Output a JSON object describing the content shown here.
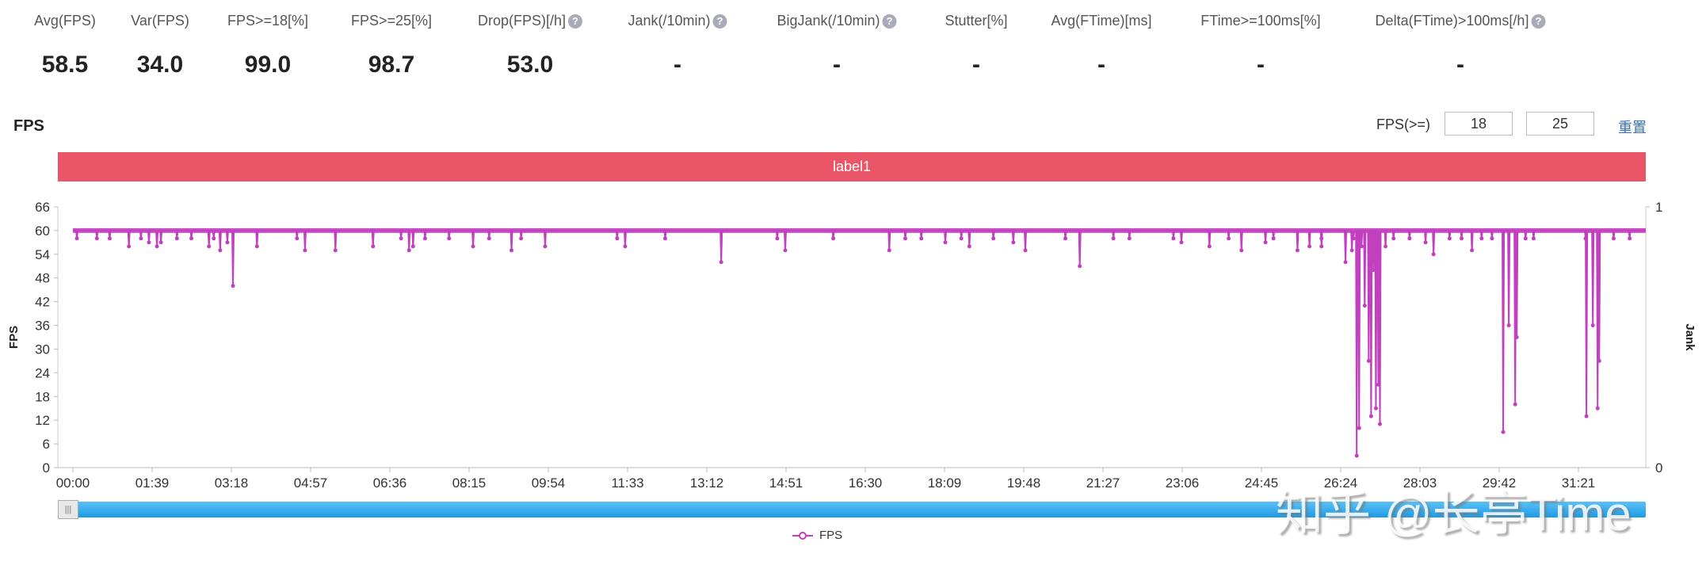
{
  "metrics": [
    {
      "label": "Avg(FPS)",
      "value": "58.5",
      "help": false
    },
    {
      "label": "Var(FPS)",
      "value": "34.0",
      "help": false
    },
    {
      "label": "FPS>=18[%]",
      "value": "99.0",
      "help": false
    },
    {
      "label": "FPS>=25[%]",
      "value": "98.7",
      "help": false
    },
    {
      "label": "Drop(FPS)[/h]",
      "value": "53.0",
      "help": true
    },
    {
      "label": "Jank(/10min)",
      "value": "-",
      "help": true
    },
    {
      "label": "BigJank(/10min)",
      "value": "-",
      "help": true
    },
    {
      "label": "Stutter[%]",
      "value": "-",
      "help": false
    },
    {
      "label": "Avg(FTime)[ms]",
      "value": "-",
      "help": false
    },
    {
      "label": "FTime>=100ms[%]",
      "value": "-",
      "help": false
    },
    {
      "label": "Delta(FTime)>100ms[/h]",
      "value": "-",
      "help": true
    }
  ],
  "help_glyph": "?",
  "section_title": "FPS",
  "controls": {
    "label": "FPS(>=)",
    "threshold1": "18",
    "threshold2": "25",
    "reset": "重置"
  },
  "label_bar": "label1",
  "colors": {
    "series": "#c23fbf",
    "label_bar": "#ea5567",
    "slider": "#1d9be6"
  },
  "watermark": "知乎 @长亭Time",
  "chart_data": {
    "type": "line",
    "xlabel": "",
    "ylabel": "FPS",
    "y2label": "Jank",
    "ylim": [
      0,
      66
    ],
    "yticks": [
      0,
      6,
      12,
      18,
      24,
      30,
      36,
      42,
      48,
      54,
      60,
      66
    ],
    "y2ticks": [
      0,
      1
    ],
    "xticks": [
      "00:00",
      "01:39",
      "03:18",
      "04:57",
      "06:36",
      "08:15",
      "09:54",
      "11:33",
      "13:12",
      "14:51",
      "16:30",
      "18:09",
      "19:48",
      "21:27",
      "23:06",
      "24:45",
      "26:24",
      "28:03",
      "29:42",
      "31:21"
    ],
    "xtick_step_s": 99,
    "duration_s": 1965,
    "legend": [
      "FPS"
    ],
    "legend_position": "bottom-center",
    "series": [
      {
        "name": "FPS",
        "baseline": 60,
        "dips": [
          [
            5,
            58
          ],
          [
            30,
            58
          ],
          [
            46,
            58
          ],
          [
            70,
            56
          ],
          [
            85,
            58
          ],
          [
            95,
            57
          ],
          [
            105,
            56
          ],
          [
            110,
            57
          ],
          [
            130,
            58
          ],
          [
            148,
            58
          ],
          [
            170,
            56
          ],
          [
            176,
            58
          ],
          [
            184,
            55
          ],
          [
            193,
            57
          ],
          [
            200,
            46
          ],
          [
            230,
            56
          ],
          [
            280,
            58
          ],
          [
            290,
            55
          ],
          [
            328,
            55
          ],
          [
            375,
            56
          ],
          [
            410,
            58
          ],
          [
            420,
            55
          ],
          [
            425,
            56
          ],
          [
            440,
            58
          ],
          [
            470,
            58
          ],
          [
            500,
            56
          ],
          [
            520,
            58
          ],
          [
            548,
            55
          ],
          [
            560,
            58
          ],
          [
            590,
            56
          ],
          [
            680,
            58
          ],
          [
            690,
            56
          ],
          [
            740,
            58
          ],
          [
            810,
            52
          ],
          [
            880,
            58
          ],
          [
            890,
            55
          ],
          [
            950,
            58
          ],
          [
            1020,
            55
          ],
          [
            1040,
            58
          ],
          [
            1060,
            58
          ],
          [
            1090,
            57
          ],
          [
            1110,
            58
          ],
          [
            1120,
            56
          ],
          [
            1150,
            58
          ],
          [
            1175,
            57
          ],
          [
            1190,
            55
          ],
          [
            1240,
            58
          ],
          [
            1258,
            51
          ],
          [
            1300,
            58
          ],
          [
            1320,
            58
          ],
          [
            1375,
            58
          ],
          [
            1385,
            57
          ],
          [
            1420,
            56
          ],
          [
            1444,
            58
          ],
          [
            1460,
            55
          ],
          [
            1490,
            57
          ],
          [
            1500,
            58
          ],
          [
            1530,
            55
          ],
          [
            1545,
            56
          ],
          [
            1560,
            58
          ],
          [
            1590,
            52
          ],
          [
            1600,
            58
          ],
          [
            1610,
            56
          ],
          [
            1560,
            56
          ],
          [
            1598,
            55
          ],
          [
            1604,
            3
          ],
          [
            1607,
            10
          ],
          [
            1614,
            41
          ],
          [
            1619,
            27
          ],
          [
            1622,
            13
          ],
          [
            1625,
            50
          ],
          [
            1628,
            15
          ],
          [
            1631,
            21
          ],
          [
            1633,
            11
          ],
          [
            1640,
            56
          ],
          [
            1650,
            58
          ],
          [
            1670,
            58
          ],
          [
            1690,
            57
          ],
          [
            1700,
            54
          ],
          [
            1720,
            58
          ],
          [
            1735,
            58
          ],
          [
            1748,
            55
          ],
          [
            1760,
            58
          ],
          [
            1773,
            58
          ],
          [
            1787,
            9
          ],
          [
            1794,
            36
          ],
          [
            1802,
            16
          ],
          [
            1804,
            33
          ],
          [
            1815,
            58
          ],
          [
            1825,
            58
          ],
          [
            1890,
            58
          ],
          [
            1891,
            13
          ],
          [
            1899,
            36
          ],
          [
            1905,
            15
          ],
          [
            1907,
            27
          ],
          [
            1925,
            58
          ],
          [
            1945,
            58
          ]
        ]
      }
    ]
  }
}
